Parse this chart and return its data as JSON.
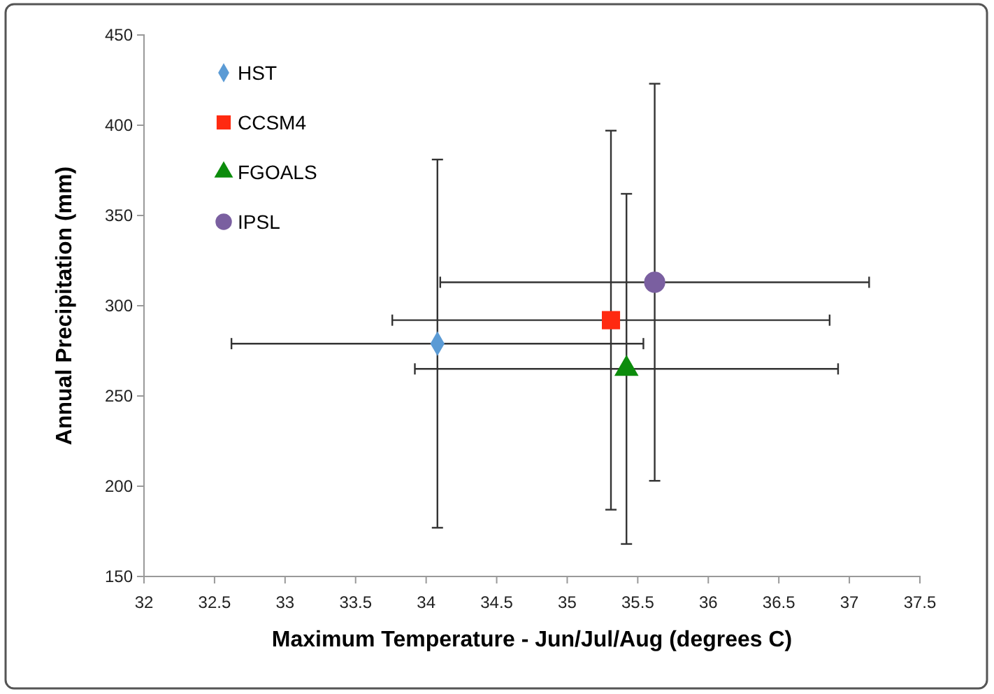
{
  "chart_data": {
    "type": "scatter",
    "xlabel": "Maximum Temperature - Jun/Jul/Aug (degrees C)",
    "ylabel": "Annual Precipitation (mm)",
    "xlim": [
      32,
      37.5
    ],
    "xticks": [
      32,
      32.5,
      33,
      33.5,
      34,
      34.5,
      35,
      35.5,
      36,
      36.5,
      37,
      37.5
    ],
    "ylim": [
      150,
      450
    ],
    "yticks": [
      150,
      200,
      250,
      300,
      350,
      400,
      450
    ],
    "grid": false,
    "legend": "top left",
    "series": [
      {
        "name": "HST",
        "color": "#5b9bd5",
        "marker": "diamond",
        "x": [
          34.08
        ],
        "values": [
          279
        ],
        "errors": [
          102
        ],
        "xerrors": [
          1.46
        ]
      },
      {
        "name": "CCSM4",
        "color": "#ff2a10",
        "marker": "square",
        "x": [
          35.31
        ],
        "values": [
          292
        ],
        "errors": [
          105
        ],
        "xerrors": [
          1.55
        ]
      },
      {
        "name": "FGOALS",
        "color": "#0c8c0c",
        "marker": "triangle",
        "x": [
          35.42
        ],
        "values": [
          265
        ],
        "errors": [
          97
        ],
        "xerrors": [
          1.5
        ]
      },
      {
        "name": "IPSL",
        "color": "#7a5fa0",
        "marker": "circle",
        "x": [
          35.62
        ],
        "values": [
          313
        ],
        "errors": [
          110
        ],
        "xerrors": [
          1.52
        ]
      }
    ]
  }
}
